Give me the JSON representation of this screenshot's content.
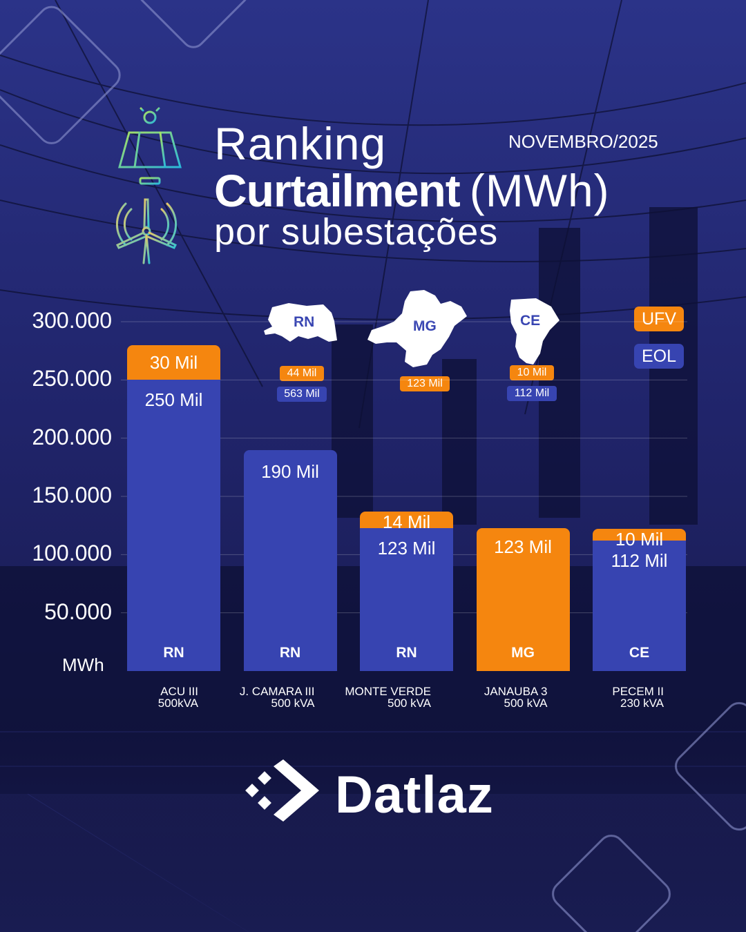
{
  "header": {
    "title_line1": "Ranking",
    "title_line2": "Curtailment",
    "title_unit": "(MWh)",
    "title_line3": "por subestações",
    "period": "NOVEMBRO/2025"
  },
  "icons": [
    "solar-panel-icon",
    "wind-turbine-icon"
  ],
  "colors": {
    "ufv": "#f5860f",
    "eol": "#3744b1",
    "background": "#1b1e5e"
  },
  "legend": {
    "ufv": "UFV",
    "eol": "EOL"
  },
  "state_totals": [
    {
      "state": "RN",
      "ufv": "44 Mil",
      "eol": "563 Mil"
    },
    {
      "state": "MG",
      "ufv": "123 Mil"
    },
    {
      "state": "CE",
      "ufv": "10 Mil",
      "eol": "112 Mil"
    }
  ],
  "chart_data": {
    "type": "bar",
    "stacked": true,
    "ylabel": "MWh",
    "ylim": [
      0,
      300000
    ],
    "yticks": [
      50000,
      100000,
      150000,
      200000,
      250000,
      300000
    ],
    "ytick_labels": [
      "50.000",
      "100.000",
      "150.000",
      "200.000",
      "250.000",
      "300.000"
    ],
    "grid": true,
    "legend_position": "top-right",
    "categories": [
      {
        "name": "ACU III",
        "capacity": "500kVA",
        "state": "RN"
      },
      {
        "name": "J. CAMARA III",
        "capacity": "500 kVA",
        "state": "RN"
      },
      {
        "name": "MONTE VERDE",
        "capacity": "500 kVA",
        "state": "RN"
      },
      {
        "name": "JANAUBA 3",
        "capacity": "500 kVA",
        "state": "MG"
      },
      {
        "name": "PECEM II",
        "capacity": "230 kVA",
        "state": "CE"
      }
    ],
    "series": [
      {
        "name": "EOL",
        "values": [
          250000,
          190000,
          123000,
          0,
          112000
        ],
        "labels": [
          "250 Mil",
          "190 Mil",
          "123 Mil",
          "",
          "112 Mil"
        ]
      },
      {
        "name": "UFV",
        "values": [
          30000,
          0,
          14000,
          123000,
          10000
        ],
        "labels": [
          "30 Mil",
          "",
          "14 Mil",
          "123 Mil",
          "10 Mil"
        ]
      }
    ]
  },
  "brand": {
    "name": "Datlaz"
  }
}
